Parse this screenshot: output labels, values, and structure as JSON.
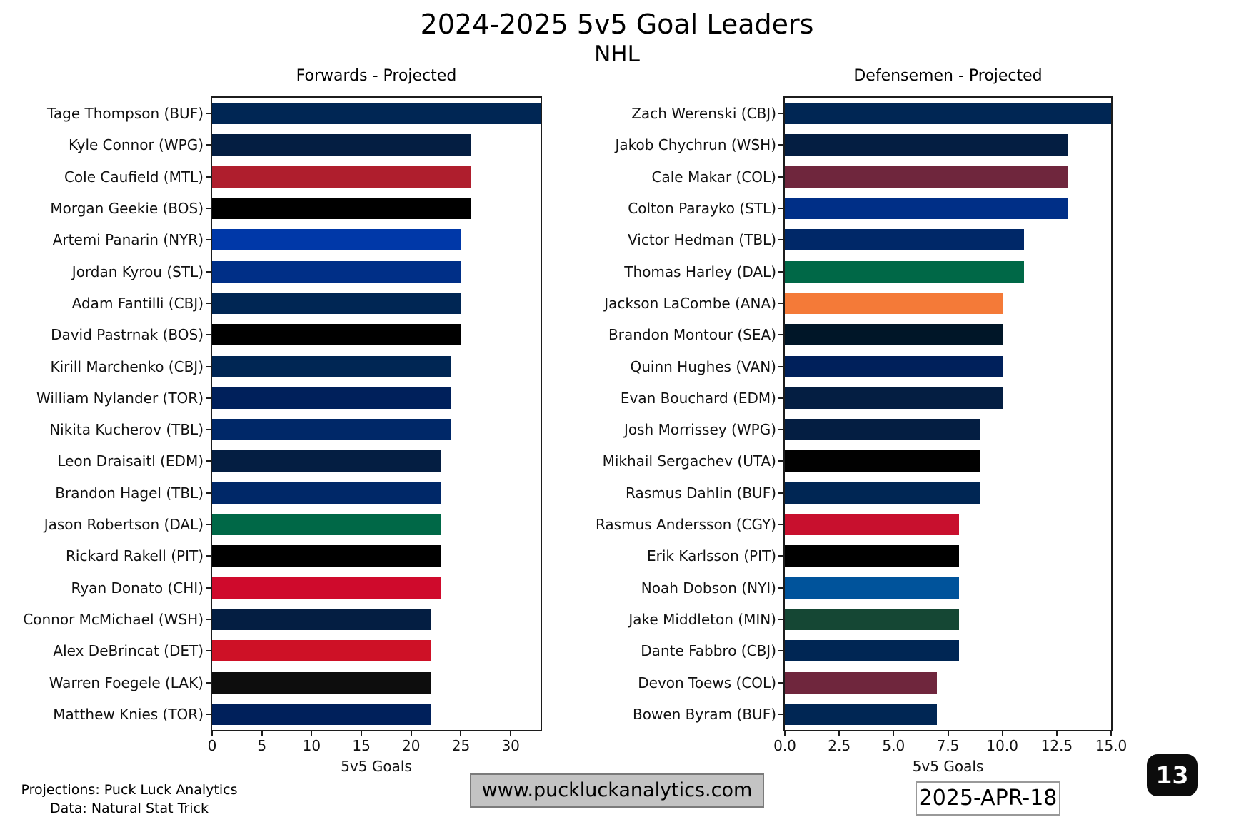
{
  "title": "2024-2025 5v5 Goal Leaders",
  "subtitle": "NHL",
  "footer": {
    "credit_line1": "Projections: Puck Luck Analytics",
    "credit_line2": "Data: Natural Stat Trick",
    "website": "www.puckluckanalytics.com",
    "date": "2025-APR-18",
    "badge": "13"
  },
  "chart_data": [
    {
      "type": "bar",
      "orientation": "horizontal",
      "title": "Forwards - Projected",
      "xlabel": "5v5 Goals",
      "xlim": [
        0,
        33
      ],
      "xtick_values": [
        0,
        5,
        10,
        15,
        20,
        25,
        30
      ],
      "xtick_labels": [
        "0",
        "5",
        "10",
        "15",
        "20",
        "25",
        "30"
      ],
      "grid": false,
      "categories": [
        "Tage Thompson (BUF)",
        "Kyle Connor (WPG)",
        "Cole Caufield (MTL)",
        "Morgan Geekie (BOS)",
        "Artemi Panarin (NYR)",
        "Jordan Kyrou (STL)",
        "Adam Fantilli (CBJ)",
        "David Pastrnak (BOS)",
        "Kirill Marchenko (CBJ)",
        "William Nylander (TOR)",
        "Nikita Kucherov (TBL)",
        "Leon Draisaitl (EDM)",
        "Brandon Hagel (TBL)",
        "Jason Robertson (DAL)",
        "Rickard Rakell (PIT)",
        "Ryan Donato (CHI)",
        "Connor McMichael (WSH)",
        "Alex DeBrincat (DET)",
        "Warren Foegele (LAK)",
        "Matthew Knies (TOR)"
      ],
      "values": [
        33,
        26,
        26,
        26,
        25,
        25,
        25,
        25,
        24,
        24,
        24,
        23,
        23,
        23,
        23,
        23,
        22,
        22,
        22,
        22
      ],
      "colors": [
        "#002654",
        "#041E42",
        "#AF1E2D",
        "#000000",
        "#0038A8",
        "#002F87",
        "#002654",
        "#000000",
        "#002654",
        "#00205B",
        "#002868",
        "#041E42",
        "#002868",
        "#006847",
        "#000000",
        "#CF0A2C",
        "#041E42",
        "#CE1126",
        "#0D0D0D",
        "#00205B"
      ]
    },
    {
      "type": "bar",
      "orientation": "horizontal",
      "title": "Defensemen - Projected",
      "xlabel": "5v5 Goals",
      "xlim": [
        0,
        15
      ],
      "xtick_values": [
        0,
        2.5,
        5,
        7.5,
        10,
        12.5,
        15
      ],
      "xtick_labels": [
        "0.0",
        "2.5",
        "5.0",
        "7.5",
        "10.0",
        "12.5",
        "15.0"
      ],
      "grid": false,
      "categories": [
        "Zach Werenski (CBJ)",
        "Jakob Chychrun (WSH)",
        "Cale Makar (COL)",
        "Colton Parayko (STL)",
        "Victor Hedman (TBL)",
        "Thomas Harley (DAL)",
        "Jackson LaCombe (ANA)",
        "Brandon Montour (SEA)",
        "Quinn Hughes (VAN)",
        "Evan Bouchard (EDM)",
        "Josh Morrissey (WPG)",
        "Mikhail Sergachev (UTA)",
        "Rasmus Dahlin (BUF)",
        "Rasmus Andersson (CGY)",
        "Erik Karlsson (PIT)",
        "Noah Dobson (NYI)",
        "Jake Middleton (MIN)",
        "Dante Fabbro (CBJ)",
        "Devon Toews (COL)",
        "Bowen Byram (BUF)"
      ],
      "values": [
        15,
        13,
        13,
        13,
        11,
        11,
        10,
        10,
        10,
        10,
        9,
        9,
        9,
        8,
        8,
        8,
        8,
        8,
        7,
        7
      ],
      "colors": [
        "#002654",
        "#041E42",
        "#6F263D",
        "#002F87",
        "#002868",
        "#006847",
        "#F47A38",
        "#001628",
        "#00205B",
        "#041E42",
        "#041E42",
        "#010101",
        "#002654",
        "#C8102E",
        "#000000",
        "#00539B",
        "#154734",
        "#002654",
        "#6F263D",
        "#002654"
      ]
    }
  ]
}
